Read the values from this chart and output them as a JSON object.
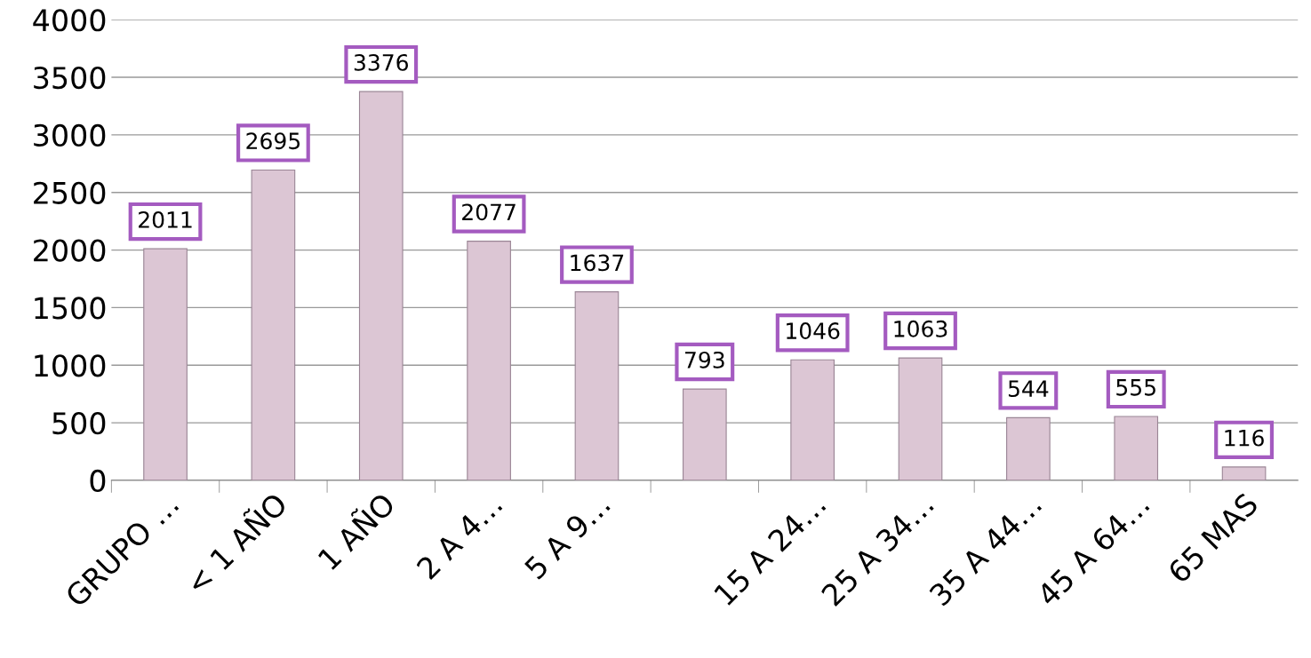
{
  "chart_data": {
    "type": "bar",
    "categories": [
      "GRUPO …",
      "< 1 AÑO",
      "1 AÑO",
      "2 A 4…",
      "5 A 9…",
      null,
      "15 A 24…",
      "25 A 34…",
      "35 A 44…",
      "45 A 64…",
      "65 MAS"
    ],
    "values": [
      2011,
      2695,
      3376,
      2077,
      1637,
      793,
      1046,
      1063,
      544,
      555,
      116
    ],
    "color": "#dcc6d4",
    "ylim": [
      0,
      4000
    ],
    "yticks": [
      0,
      500,
      1000,
      1500,
      2000,
      2500,
      3000,
      3500,
      4000
    ],
    "grid": "y",
    "data_labels": true
  }
}
